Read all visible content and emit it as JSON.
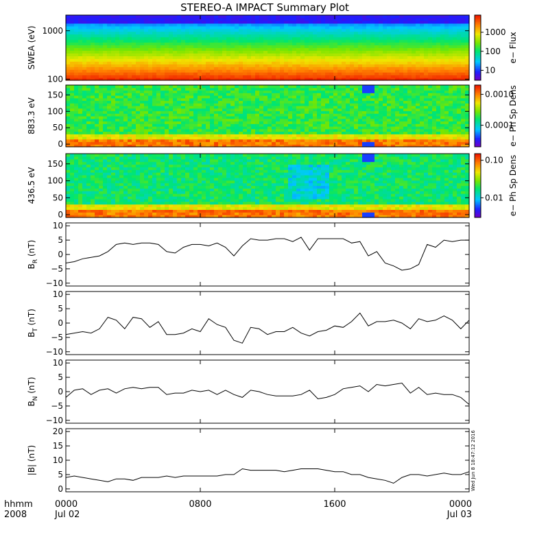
{
  "title": "STEREO-A IMPACT Summary Plot",
  "timestamp": "Wed Jun  8 18:47:12 2016",
  "x_axis": {
    "label_line1": "hhmm",
    "label_line2": "2008",
    "ticks": [
      {
        "t": 0,
        "time": "0000",
        "date": "Jul 02"
      },
      {
        "t": 8,
        "time": "0800",
        "date": ""
      },
      {
        "t": 16,
        "time": "1600",
        "date": ""
      },
      {
        "t": 24,
        "time": "0000",
        "date": "Jul 03"
      }
    ]
  },
  "chart_data": [
    {
      "type": "heatmap",
      "panel": "swea",
      "ylabel": "SWEA (eV)",
      "yscale": "log",
      "ylim": [
        95,
        2100
      ],
      "yticks": [
        {
          "v": 100,
          "label": "100"
        },
        {
          "v": 1000,
          "label": "1000"
        }
      ],
      "colorbar": {
        "label": "e− Flux",
        "scale": "log",
        "range": [
          3,
          8000
        ],
        "ticks": [
          {
            "v": 10,
            "label": "10"
          },
          {
            "v": 100,
            "label": "100"
          },
          {
            "v": 1000,
            "label": "1000"
          }
        ]
      }
    },
    {
      "type": "heatmap",
      "panel": "pad883",
      "ylabel": "883.3 eV",
      "ylim": [
        -8,
        180
      ],
      "yticks": [
        {
          "v": 0,
          "label": "0"
        },
        {
          "v": 50,
          "label": "50"
        },
        {
          "v": 100,
          "label": "100"
        },
        {
          "v": 150,
          "label": "150"
        }
      ],
      "colorbar": {
        "label": "e− Ph Sp Dens",
        "scale": "log",
        "range": [
          2e-05,
          0.002
        ],
        "ticks": [
          {
            "v": 0.0001,
            "label": "0.0001"
          },
          {
            "v": 0.001,
            "label": "0.0010"
          }
        ]
      }
    },
    {
      "type": "heatmap",
      "panel": "pad436",
      "ylabel": "436.5 eV",
      "ylim": [
        -8,
        180
      ],
      "yticks": [
        {
          "v": 0,
          "label": "0"
        },
        {
          "v": 50,
          "label": "50"
        },
        {
          "v": 100,
          "label": "100"
        },
        {
          "v": 150,
          "label": "150"
        }
      ],
      "colorbar": {
        "label": "e− Ph Sp Dens",
        "scale": "log",
        "range": [
          0.003,
          0.15
        ],
        "ticks": [
          {
            "v": 0.01,
            "label": "0.01"
          },
          {
            "v": 0.1,
            "label": "0.10"
          }
        ]
      }
    },
    {
      "type": "line",
      "panel": "br",
      "ylabel": "B",
      "ylabel_sub": "R",
      "ylabel_unit": " (nT)",
      "ylim": [
        -11,
        11
      ],
      "yticks": [
        {
          "v": -10,
          "label": "−10"
        },
        {
          "v": -5,
          "label": "−5"
        },
        {
          "v": 0,
          "label": "0"
        },
        {
          "v": 5,
          "label": "5"
        },
        {
          "v": 10,
          "label": "10"
        }
      ],
      "x": [
        0,
        0.5,
        1,
        1.5,
        2,
        2.5,
        3,
        3.5,
        4,
        4.5,
        5,
        5.5,
        6,
        6.5,
        7,
        7.5,
        8,
        8.5,
        9,
        9.5,
        10,
        10.5,
        11,
        11.5,
        12,
        12.5,
        13,
        13.5,
        14,
        14.5,
        15,
        15.5,
        16,
        16.5,
        17,
        17.5,
        18,
        18.5,
        19,
        19.5,
        20,
        20.5,
        21,
        21.5,
        22,
        22.5,
        23,
        23.5,
        24
      ],
      "y": [
        -3,
        -2.5,
        -1.5,
        -1,
        -0.5,
        1,
        3.5,
        4,
        3.5,
        4,
        4,
        3.5,
        1,
        0.5,
        2.5,
        3.5,
        3.5,
        3,
        4,
        2.5,
        -0.5,
        3,
        5.5,
        5,
        5,
        5.5,
        5.5,
        4.5,
        6,
        1.5,
        5.5,
        5.5,
        5.5,
        5.5,
        4,
        4.5,
        -0.5,
        1,
        -3,
        -4,
        -5.5,
        -5,
        -3.5,
        3.5,
        2.5,
        5,
        4.5,
        5,
        5
      ]
    },
    {
      "type": "line",
      "panel": "bt",
      "ylabel": "B",
      "ylabel_sub": "T",
      "ylabel_unit": " (nT)",
      "ylim": [
        -11,
        11
      ],
      "yticks": [
        {
          "v": -10,
          "label": "−10"
        },
        {
          "v": -5,
          "label": "−5"
        },
        {
          "v": 0,
          "label": "0"
        },
        {
          "v": 5,
          "label": "5"
        },
        {
          "v": 10,
          "label": "10"
        }
      ],
      "x": [
        0,
        0.5,
        1,
        1.5,
        2,
        2.5,
        3,
        3.5,
        4,
        4.5,
        5,
        5.5,
        6,
        6.5,
        7,
        7.5,
        8,
        8.5,
        9,
        9.5,
        10,
        10.5,
        11,
        11.5,
        12,
        12.5,
        13,
        13.5,
        14,
        14.5,
        15,
        15.5,
        16,
        16.5,
        17,
        17.5,
        18,
        18.5,
        19,
        19.5,
        20,
        20.5,
        21,
        21.5,
        22,
        22.5,
        23,
        23.5,
        24
      ],
      "y": [
        -4,
        -3.5,
        -3,
        -3.5,
        -2,
        2,
        1,
        -2,
        2,
        1.5,
        -1.5,
        0.5,
        -4,
        -4,
        -3.5,
        -2,
        -3,
        1.5,
        -0.5,
        -1.5,
        -6,
        -7,
        -1.5,
        -2,
        -4,
        -3,
        -3,
        -1.5,
        -3.5,
        -4.5,
        -3,
        -2.5,
        -1,
        -1.5,
        0.5,
        3.5,
        -1,
        0.5,
        0.5,
        1,
        0,
        -2,
        1.5,
        0.5,
        1,
        2.5,
        1,
        -2,
        1
      ]
    },
    {
      "type": "line",
      "panel": "bn",
      "ylabel": "B",
      "ylabel_sub": "N",
      "ylabel_unit": " (nT)",
      "ylim": [
        -11,
        11
      ],
      "yticks": [
        {
          "v": -10,
          "label": "−10"
        },
        {
          "v": -5,
          "label": "−5"
        },
        {
          "v": 0,
          "label": "0"
        },
        {
          "v": 5,
          "label": "5"
        },
        {
          "v": 10,
          "label": "10"
        }
      ],
      "x": [
        0,
        0.5,
        1,
        1.5,
        2,
        2.5,
        3,
        3.5,
        4,
        4.5,
        5,
        5.5,
        6,
        6.5,
        7,
        7.5,
        8,
        8.5,
        9,
        9.5,
        10,
        10.5,
        11,
        11.5,
        12,
        12.5,
        13,
        13.5,
        14,
        14.5,
        15,
        15.5,
        16,
        16.5,
        17,
        17.5,
        18,
        18.5,
        19,
        19.5,
        20,
        20.5,
        21,
        21.5,
        22,
        22.5,
        23,
        23.5,
        24
      ],
      "y": [
        -2,
        0.5,
        1,
        -1,
        0.5,
        1,
        -0.5,
        1,
        1.5,
        1,
        1.5,
        1.5,
        -1,
        -0.5,
        -0.5,
        0.5,
        0,
        0.5,
        -1,
        0.5,
        -1,
        -2,
        0.5,
        0,
        -1,
        -1.5,
        -1.5,
        -1.5,
        -1,
        0.5,
        -2.5,
        -2,
        -1,
        1,
        1.5,
        2,
        0,
        2.5,
        2,
        2.5,
        3,
        -0.5,
        1.5,
        -1,
        -0.5,
        -1,
        -1,
        -2,
        -4.5
      ]
    },
    {
      "type": "line",
      "panel": "bmag",
      "ylabel": "|B| (nT)",
      "ylim": [
        -1,
        21
      ],
      "yticks": [
        {
          "v": 0,
          "label": "0"
        },
        {
          "v": 5,
          "label": "5"
        },
        {
          "v": 10,
          "label": "10"
        },
        {
          "v": 15,
          "label": "15"
        },
        {
          "v": 20,
          "label": "20"
        }
      ],
      "x": [
        0,
        0.5,
        1,
        1.5,
        2,
        2.5,
        3,
        3.5,
        4,
        4.5,
        5,
        5.5,
        6,
        6.5,
        7,
        7.5,
        8,
        8.5,
        9,
        9.5,
        10,
        10.5,
        11,
        11.5,
        12,
        12.5,
        13,
        13.5,
        14,
        14.5,
        15,
        15.5,
        16,
        16.5,
        17,
        17.5,
        18,
        18.5,
        19,
        19.5,
        20,
        20.5,
        21,
        21.5,
        22,
        22.5,
        23,
        23.5,
        24
      ],
      "y": [
        4,
        4.5,
        4,
        3.5,
        3,
        2.5,
        3.5,
        3.5,
        3,
        4,
        4,
        4,
        4.5,
        4,
        4.5,
        4.5,
        4.5,
        4.5,
        4.5,
        5,
        5,
        7,
        6.5,
        6.5,
        6.5,
        6.5,
        6,
        6.5,
        7,
        7,
        7,
        6.5,
        6,
        6,
        5,
        5,
        4,
        3.5,
        3,
        2,
        4,
        5,
        5,
        4.5,
        5,
        5.5,
        5,
        5,
        6
      ]
    }
  ]
}
